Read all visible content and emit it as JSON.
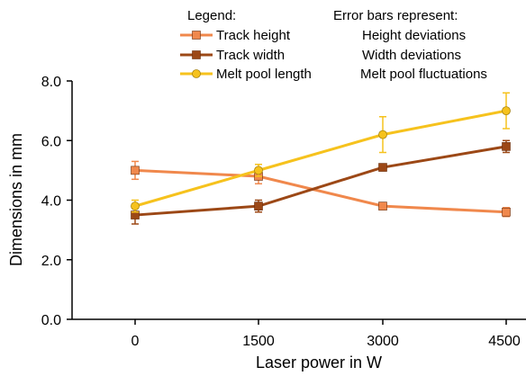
{
  "chart_data": {
    "type": "line",
    "xlabel": "Laser power in W",
    "ylabel": "Dimensions in mm",
    "categories": [
      "0",
      "1500",
      "3000",
      "4500"
    ],
    "y_ticks": [
      "0.0",
      "2.0",
      "4.0",
      "6.0",
      "8.0"
    ],
    "ylim": [
      0,
      8
    ],
    "grid": false,
    "legend_position": "top",
    "legend_title": "Legend:",
    "error_title": "Error bars represent:",
    "series": [
      {
        "name": "Track height",
        "color": "#f0884c",
        "marker": "square",
        "values": [
          5.0,
          4.8,
          3.8,
          3.6
        ],
        "errors": [
          0.3,
          0.25,
          0.1,
          0.15
        ],
        "error_desc": "Height deviations"
      },
      {
        "name": "Track width",
        "color": "#9c4816",
        "marker": "square",
        "values": [
          3.5,
          3.8,
          5.1,
          5.8
        ],
        "errors": [
          0.3,
          0.2,
          0.1,
          0.2
        ],
        "error_desc": "Width deviations"
      },
      {
        "name": "Melt pool length",
        "color": "#f6c21d",
        "marker": "circle",
        "values": [
          3.8,
          5.0,
          6.2,
          7.0
        ],
        "errors": [
          0.2,
          0.2,
          0.6,
          0.6
        ],
        "error_desc": "Melt pool fluctuations"
      }
    ]
  }
}
